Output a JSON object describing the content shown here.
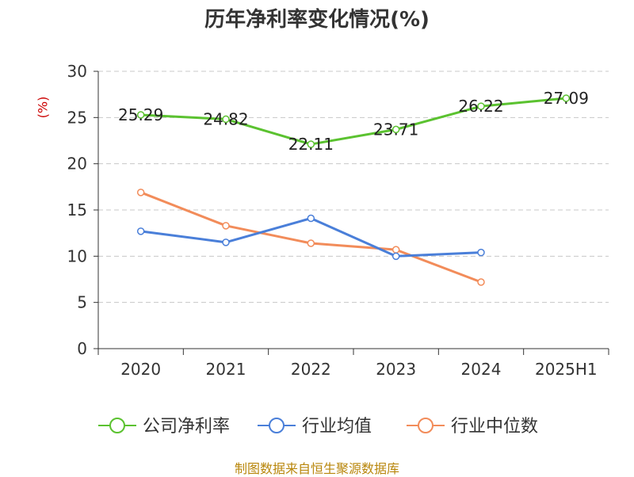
{
  "chart_data": {
    "type": "line",
    "title": "历年净利率变化情况(%)",
    "unit_label": "(%)",
    "categories": [
      "2020",
      "2021",
      "2022",
      "2023",
      "2024",
      "2025H1"
    ],
    "ylim": [
      0,
      30
    ],
    "yticks": [
      0,
      5,
      10,
      15,
      20,
      25,
      30
    ],
    "grid": true,
    "legend_position": "bottom",
    "series": [
      {
        "name": "公司净利率",
        "color": "#5bc230",
        "values": [
          25.29,
          24.82,
          22.11,
          23.71,
          26.22,
          27.09
        ],
        "labels": [
          "25.29",
          "24.82",
          "22.11",
          "23.71",
          "26.22",
          "27.09"
        ]
      },
      {
        "name": "行业均值",
        "color": "#4a7fd9",
        "values": [
          12.7,
          11.5,
          14.1,
          10.0,
          10.4,
          null
        ]
      },
      {
        "name": "行业中位数",
        "color": "#f28c5a",
        "values": [
          16.9,
          13.3,
          11.4,
          10.7,
          7.2,
          null
        ]
      }
    ]
  },
  "source": "制图数据来自恒生聚源数据库"
}
